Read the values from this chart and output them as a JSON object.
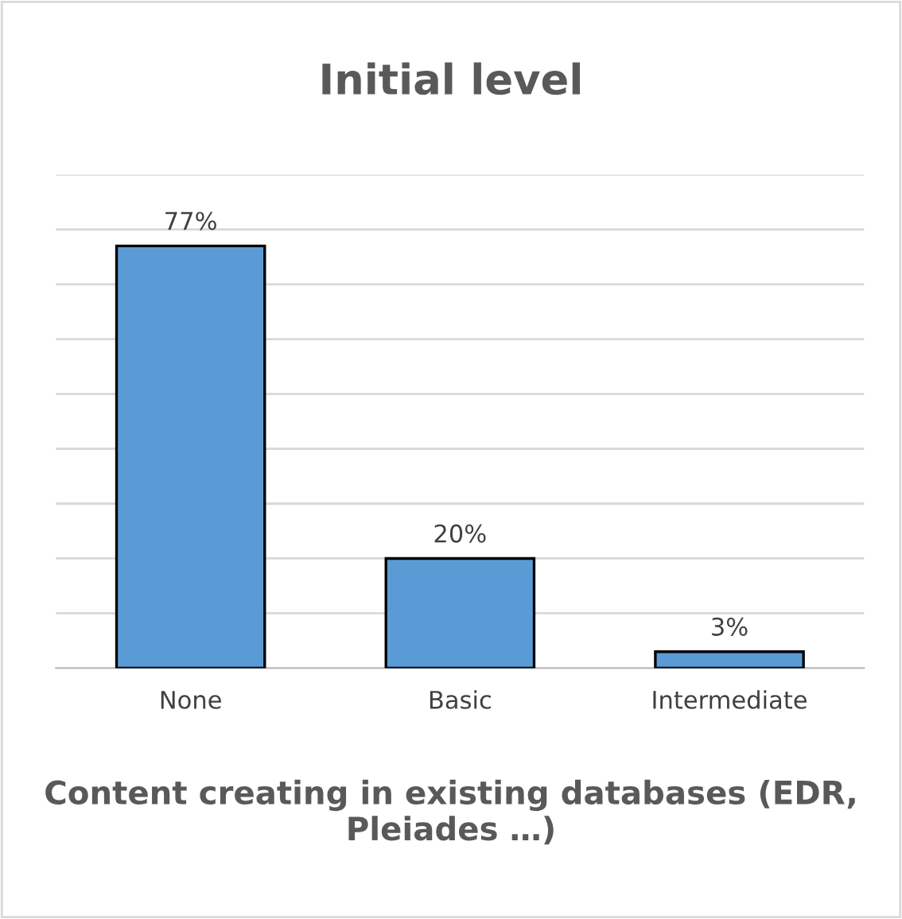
{
  "chart_data": {
    "type": "bar",
    "title": "Initial level",
    "xlabel": "Content creating in existing databases (EDR, Pleiades …)",
    "categories": [
      "None",
      "Basic",
      "Intermediate"
    ],
    "values": [
      77,
      20,
      3
    ],
    "color": "#5b9bd5",
    "value_labels": [
      "77%",
      "20%",
      "3%"
    ],
    "ylim": [
      0,
      90
    ],
    "yticks": [
      {
        "value": 0,
        "label": null
      },
      {
        "value": 10,
        "label": null
      },
      {
        "value": 20,
        "label": null
      },
      {
        "value": 30,
        "label": null
      },
      {
        "value": 40,
        "label": null
      },
      {
        "value": 50,
        "label": null
      },
      {
        "value": 60,
        "label": null
      },
      {
        "value": 70,
        "label": null
      },
      {
        "value": 80,
        "label": null
      },
      {
        "value": 90,
        "label": null
      }
    ],
    "grid": "y",
    "tick_labels": "x"
  }
}
